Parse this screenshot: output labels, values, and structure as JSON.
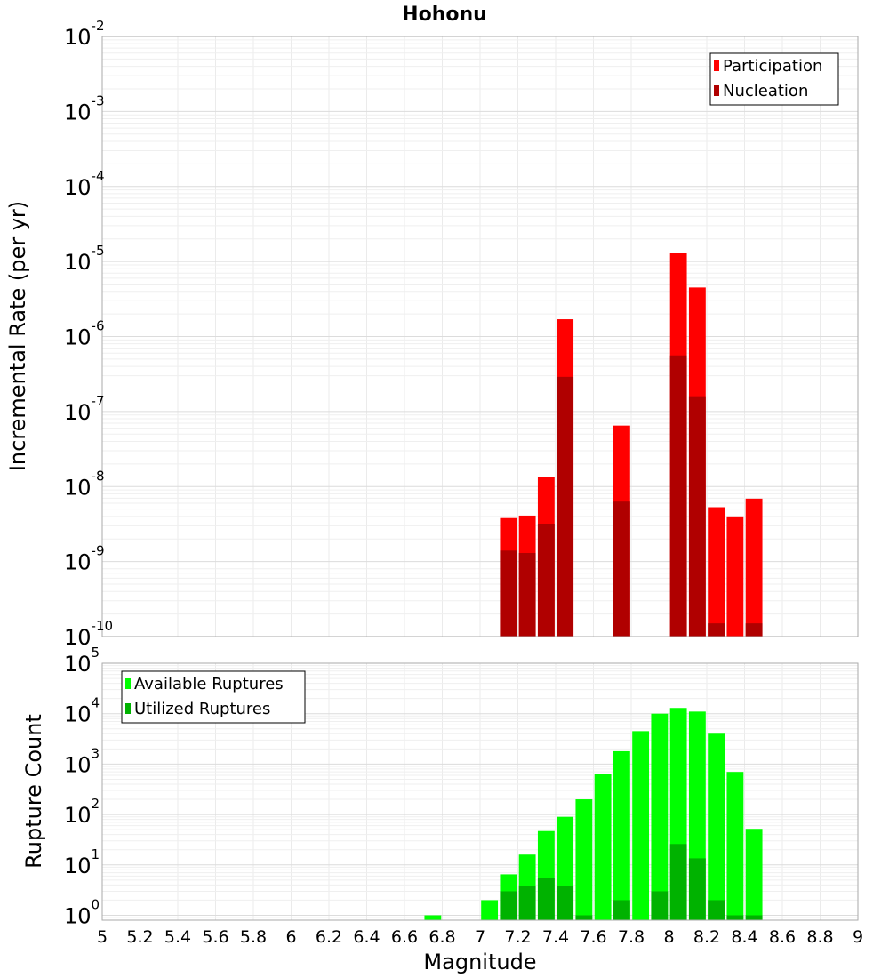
{
  "chart_data": {
    "type": "bar",
    "title": "Hohonu",
    "xlabel": "Magnitude",
    "xlim": [
      5,
      9
    ],
    "x_ticks": [
      "5",
      "5.2",
      "5.4",
      "5.6",
      "5.8",
      "6",
      "6.2",
      "6.4",
      "6.6",
      "6.8",
      "7",
      "7.2",
      "7.4",
      "7.6",
      "7.8",
      "8",
      "8.2",
      "8.4",
      "8.6",
      "8.8",
      "9"
    ],
    "grid": true,
    "panels": [
      {
        "ylabel": "Incremental Rate (per yr)",
        "yscale": "log",
        "ylim": [
          1e-10,
          0.01
        ],
        "y_tick_exponents": [
          "-10",
          "-9",
          "-8",
          "-7",
          "-6",
          "-5",
          "-4",
          "-3",
          "-2"
        ],
        "legend_position": "top-right",
        "colors": {
          "Participation": "#ff0000",
          "Nucleation": "#b00000"
        },
        "series": [
          {
            "name": "Participation",
            "x": [
              7.15,
              7.25,
              7.35,
              7.45,
              7.75,
              8.05,
              8.15,
              8.25,
              8.35,
              8.45
            ],
            "values": [
              3.8e-09,
              4.1e-09,
              1.35e-08,
              1.7e-06,
              6.5e-08,
              1.3e-05,
              4.5e-06,
              5.3e-09,
              4e-09,
              6.9e-09
            ]
          },
          {
            "name": "Nucleation",
            "x": [
              7.15,
              7.25,
              7.35,
              7.45,
              7.75,
              8.05,
              8.15,
              8.25,
              8.45
            ],
            "values": [
              1.4e-09,
              1.3e-09,
              3.2e-09,
              2.9e-07,
              6.3e-09,
              5.6e-07,
              1.6e-07,
              1.5e-10,
              1.5e-10
            ]
          }
        ]
      },
      {
        "ylabel": "Rupture Count",
        "yscale": "log",
        "ylim": [
          0.8,
          100000.0
        ],
        "y_tick_exponents": [
          "0",
          "1",
          "2",
          "3",
          "4",
          "5"
        ],
        "legend_position": "top-left",
        "colors": {
          "Available Ruptures": "#00ff00",
          "Utilized Ruptures": "#00b200"
        },
        "series": [
          {
            "name": "Available Ruptures",
            "x": [
              6.75,
              7.05,
              7.15,
              7.25,
              7.35,
              7.45,
              7.55,
              7.65,
              7.75,
              7.85,
              7.95,
              8.05,
              8.15,
              8.25,
              8.35,
              8.45
            ],
            "values": [
              1,
              2,
              6.5,
              16,
              47,
              90,
              200,
              650,
              1800,
              4500,
              10000,
              13000,
              11000,
              4000,
              700,
              52
            ]
          },
          {
            "name": "Utilized Ruptures",
            "x": [
              7.15,
              7.25,
              7.35,
              7.45,
              7.55,
              7.75,
              7.95,
              8.05,
              8.15,
              8.25,
              8.35,
              8.45
            ],
            "values": [
              3,
              3.8,
              5.5,
              3.8,
              1,
              2,
              3,
              26,
              13.5,
              2,
              1,
              1
            ]
          }
        ]
      }
    ]
  }
}
